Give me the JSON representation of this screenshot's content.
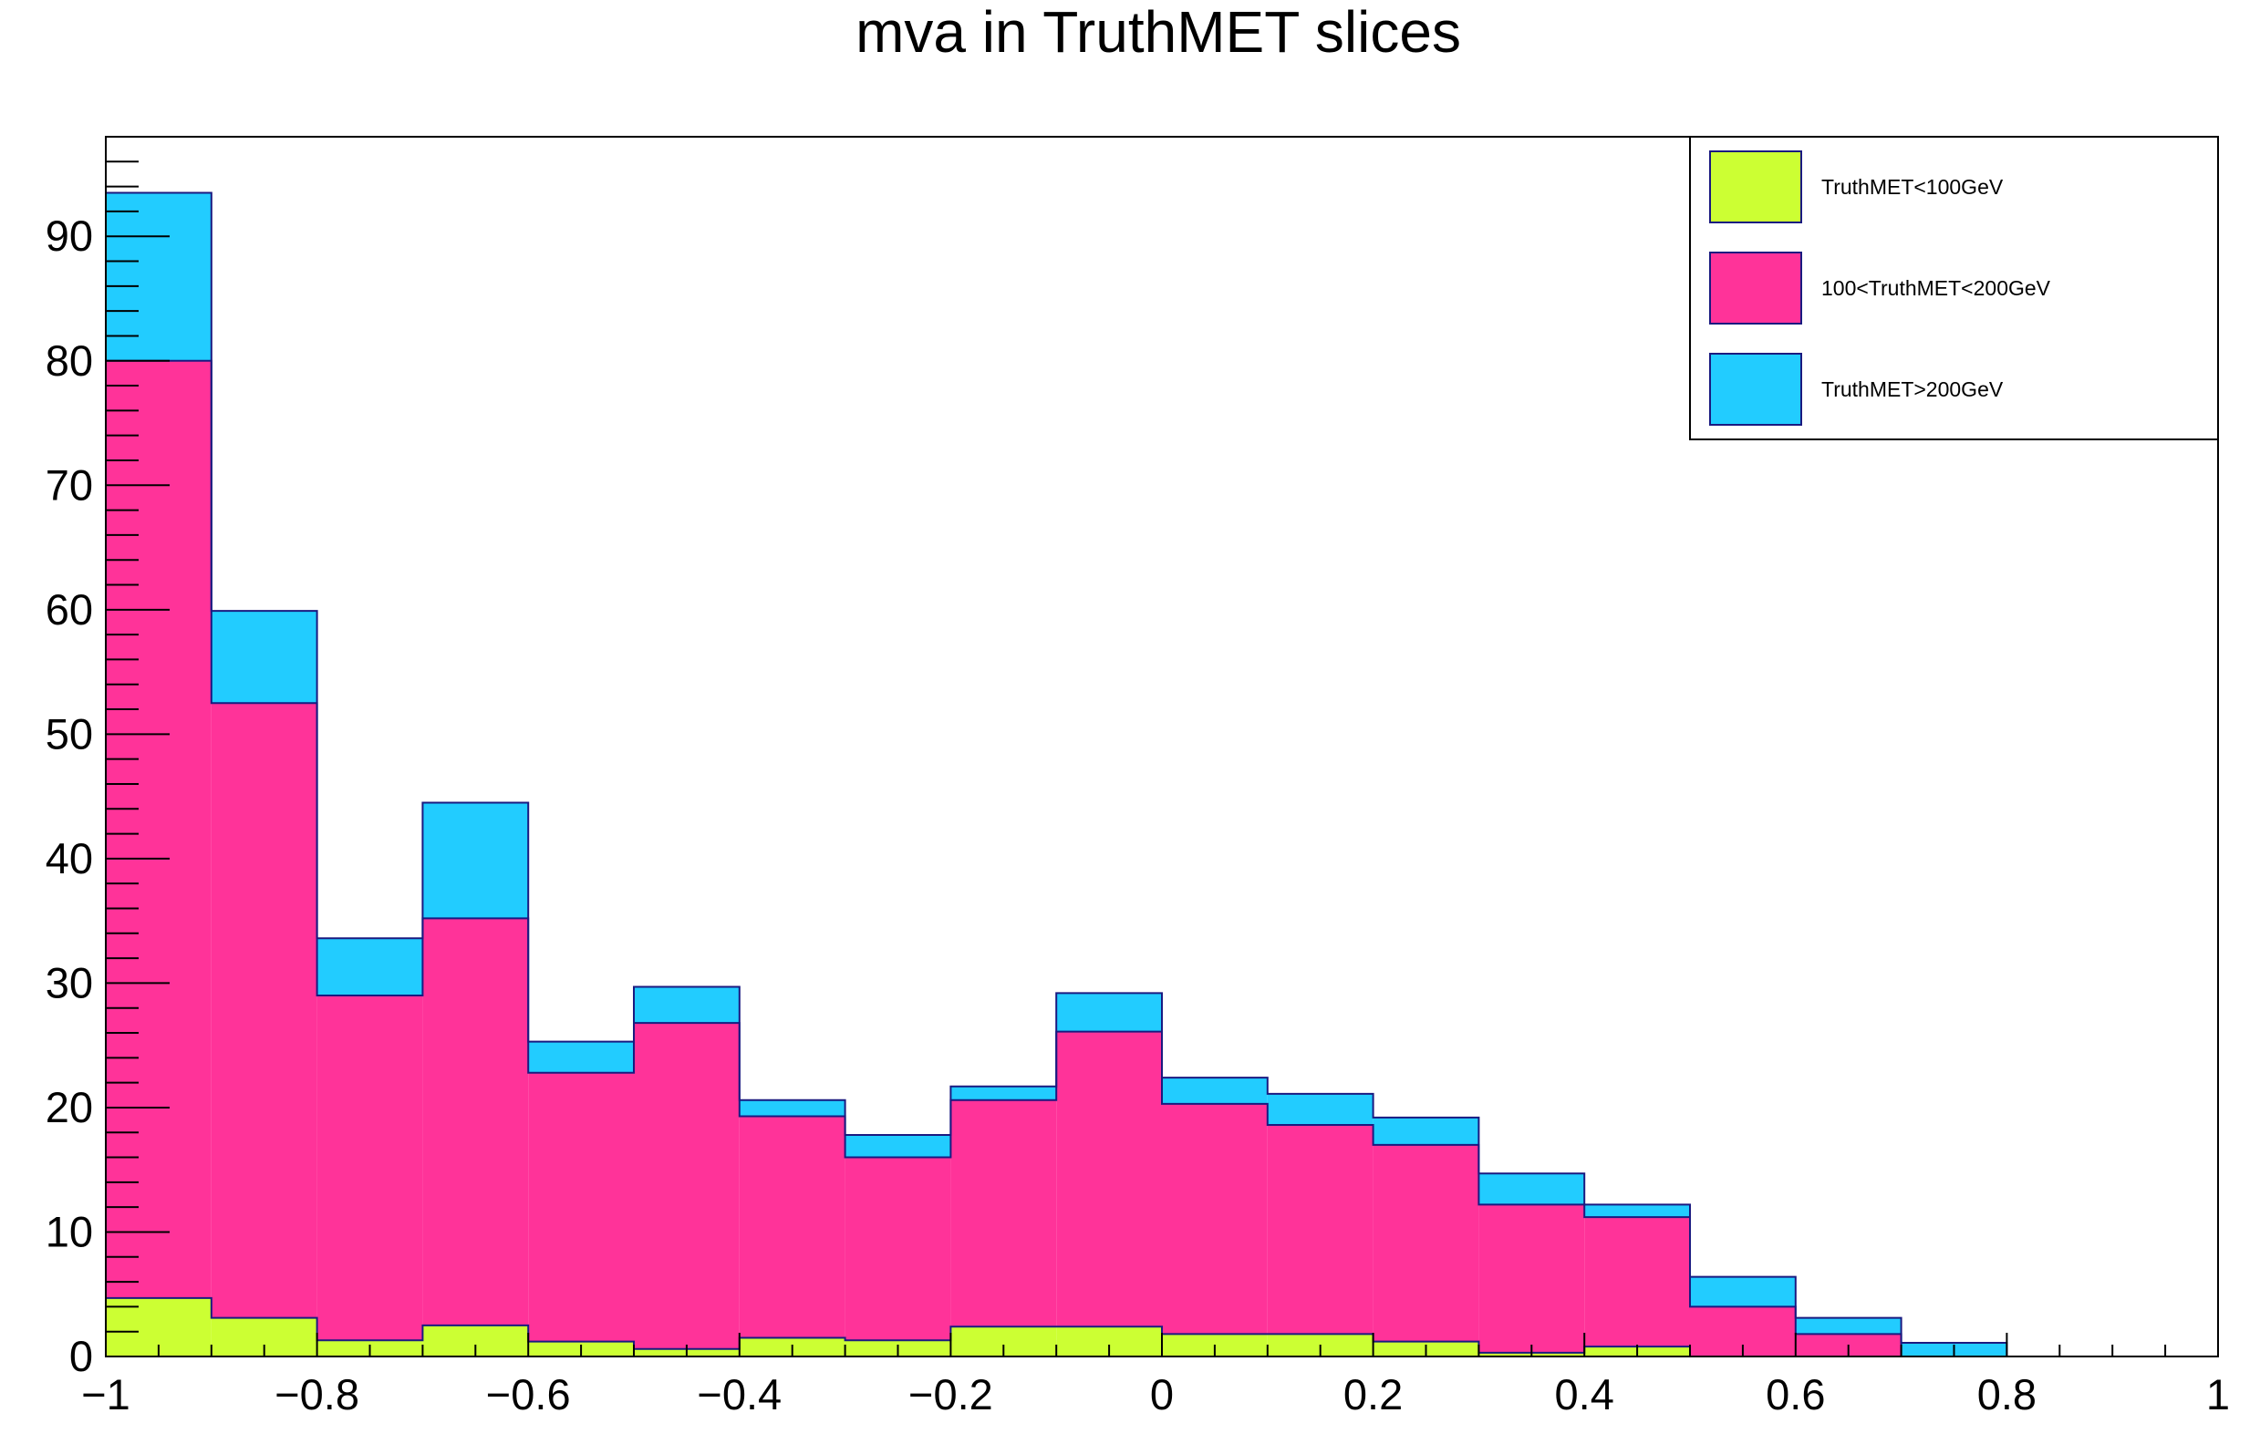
{
  "chart_data": {
    "type": "bar",
    "stacked": true,
    "title": "mva in TruthMET slices",
    "xlabel": "",
    "ylabel": "",
    "xlim": [
      -1,
      1
    ],
    "ylim": [
      0,
      98
    ],
    "bin_width": 0.1,
    "x_ticks": [
      -1,
      -0.8,
      -0.6,
      -0.4,
      -0.2,
      0,
      0.2,
      0.4,
      0.6,
      0.8,
      1
    ],
    "x_tick_labels": [
      "−1",
      "−0.8",
      "−0.6",
      "−0.4",
      "−0.2",
      "0",
      "0.2",
      "0.4",
      "0.6",
      "0.8",
      "1"
    ],
    "y_ticks": [
      0,
      10,
      20,
      30,
      40,
      50,
      60,
      70,
      80,
      90
    ],
    "y_tick_labels": [
      "0",
      "10",
      "20",
      "30",
      "40",
      "50",
      "60",
      "70",
      "80",
      "90"
    ],
    "bin_edges": [
      -1,
      -0.9,
      -0.8,
      -0.7,
      -0.6,
      -0.5,
      -0.4,
      -0.3,
      -0.2,
      -0.1,
      0,
      0.1,
      0.2,
      0.3,
      0.4,
      0.5,
      0.6,
      0.7,
      0.8,
      0.9,
      1
    ],
    "series": [
      {
        "name": "TruthMET<100GeV",
        "color": "#ccff33",
        "values": [
          4.7,
          3.1,
          1.3,
          2.5,
          1.2,
          0.6,
          1.5,
          1.3,
          2.4,
          2.4,
          1.8,
          1.8,
          1.2,
          0.3,
          0.8,
          0,
          0,
          0,
          0,
          0
        ]
      },
      {
        "name": "100<TruthMET<200GeV",
        "color": "#ff3399",
        "values": [
          75.3,
          49.4,
          27.7,
          32.7,
          21.6,
          26.2,
          17.8,
          14.7,
          18.2,
          23.7,
          18.5,
          16.8,
          15.8,
          11.9,
          10.4,
          4.0,
          1.8,
          0,
          0,
          0
        ]
      },
      {
        "name": "TruthMET>200GeV",
        "color": "#22ccff",
        "values": [
          13.5,
          7.4,
          4.6,
          9.3,
          2.5,
          2.9,
          1.3,
          1.8,
          1.1,
          3.1,
          2.1,
          2.5,
          2.2,
          2.5,
          1.0,
          2.4,
          1.3,
          1.1,
          0,
          0
        ]
      }
    ],
    "legend": {
      "position": "top-right",
      "entries": [
        "TruthMET<100GeV",
        "100<TruthMET<200GeV",
        "TruthMET>200GeV"
      ]
    },
    "outline_color": "#1a1a80"
  }
}
